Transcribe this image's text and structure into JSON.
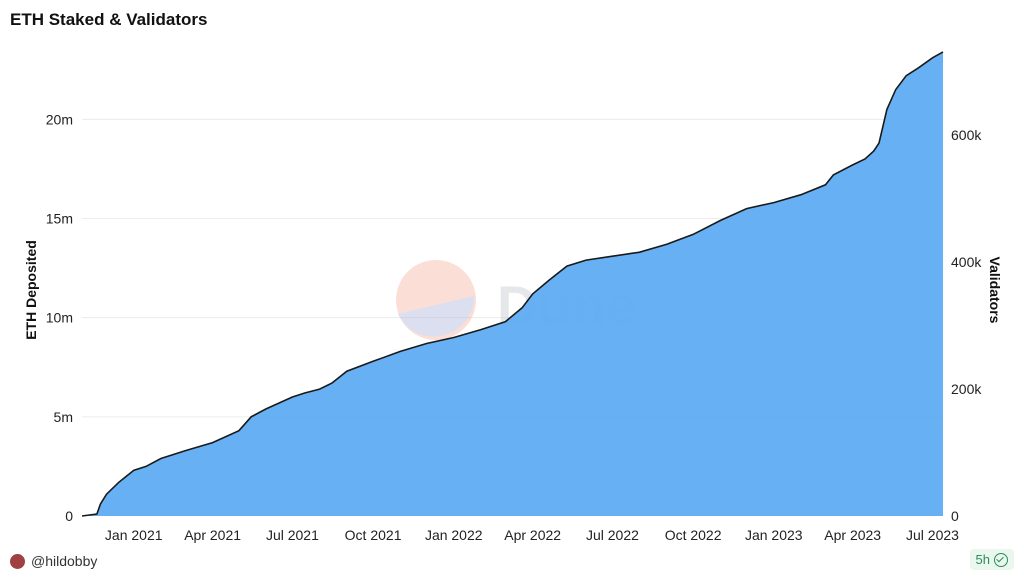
{
  "title": "ETH Staked & Validators",
  "author": "@hildobby",
  "age": "5h",
  "watermark": "Dune",
  "colors": {
    "area": "#5aaaf2",
    "line": "#1a1a1a"
  },
  "chart_data": {
    "type": "area",
    "title": "ETH Staked & Validators",
    "ylabel": "ETH Deposited",
    "y2label": "Validators",
    "ylim": [
      0,
      24000000
    ],
    "y2lim": [
      0,
      750000
    ],
    "yticks": [
      0,
      5000000,
      10000000,
      15000000,
      20000000
    ],
    "ytick_labels": [
      "0",
      "5m",
      "10m",
      "15m",
      "20m"
    ],
    "y2ticks": [
      0,
      200000,
      400000,
      600000
    ],
    "y2tick_labels": [
      "0",
      "200k",
      "400k",
      "600k"
    ],
    "xlim": [
      "2020-11-03",
      "2023-07-13"
    ],
    "xticks": [
      "2021-01-01",
      "2021-04-01",
      "2021-07-01",
      "2021-10-01",
      "2022-01-01",
      "2022-04-01",
      "2022-07-01",
      "2022-10-01",
      "2023-01-01",
      "2023-04-01",
      "2023-07-01"
    ],
    "xtick_labels": [
      "Jan 2021",
      "Apr 2021",
      "Jul 2021",
      "Oct 2021",
      "Jan 2022",
      "Apr 2022",
      "Jul 2022",
      "Oct 2022",
      "Jan 2023",
      "Apr 2023",
      "Jul 2023"
    ],
    "grid": true,
    "legend": "none",
    "series": [
      {
        "x": [
          "2020-11-03",
          "2020-11-20",
          "2020-11-24",
          "2020-12-01",
          "2020-12-15",
          "2021-01-01",
          "2021-01-15",
          "2021-02-01",
          "2021-03-01",
          "2021-04-01",
          "2021-05-01",
          "2021-05-15",
          "2021-06-01",
          "2021-07-01",
          "2021-07-15",
          "2021-08-01",
          "2021-08-15",
          "2021-09-01",
          "2021-10-01",
          "2021-11-01",
          "2021-12-01",
          "2022-01-01",
          "2022-02-01",
          "2022-03-01",
          "2022-03-20",
          "2022-04-01",
          "2022-04-20",
          "2022-05-10",
          "2022-06-01",
          "2022-07-01",
          "2022-08-01",
          "2022-09-01",
          "2022-10-01",
          "2022-11-01",
          "2022-12-01",
          "2023-01-01",
          "2023-02-01",
          "2023-03-01",
          "2023-03-10",
          "2023-04-01",
          "2023-04-15",
          "2023-04-25",
          "2023-05-01",
          "2023-05-10",
          "2023-05-20",
          "2023-06-01",
          "2023-06-15",
          "2023-07-01",
          "2023-07-13"
        ],
        "y": [
          0,
          100000,
          600000,
          1100000,
          1700000,
          2300000,
          2500000,
          2900000,
          3300000,
          3700000,
          4300000,
          5000000,
          5400000,
          6000000,
          6200000,
          6400000,
          6700000,
          7300000,
          7800000,
          8300000,
          8700000,
          9000000,
          9400000,
          9800000,
          10500000,
          11200000,
          11900000,
          12600000,
          12900000,
          13100000,
          13300000,
          13700000,
          14200000,
          14900000,
          15500000,
          15800000,
          16200000,
          16700000,
          17200000,
          17700000,
          18000000,
          18400000,
          18800000,
          20500000,
          21500000,
          22200000,
          22600000,
          23100000,
          23400000
        ]
      }
    ]
  }
}
